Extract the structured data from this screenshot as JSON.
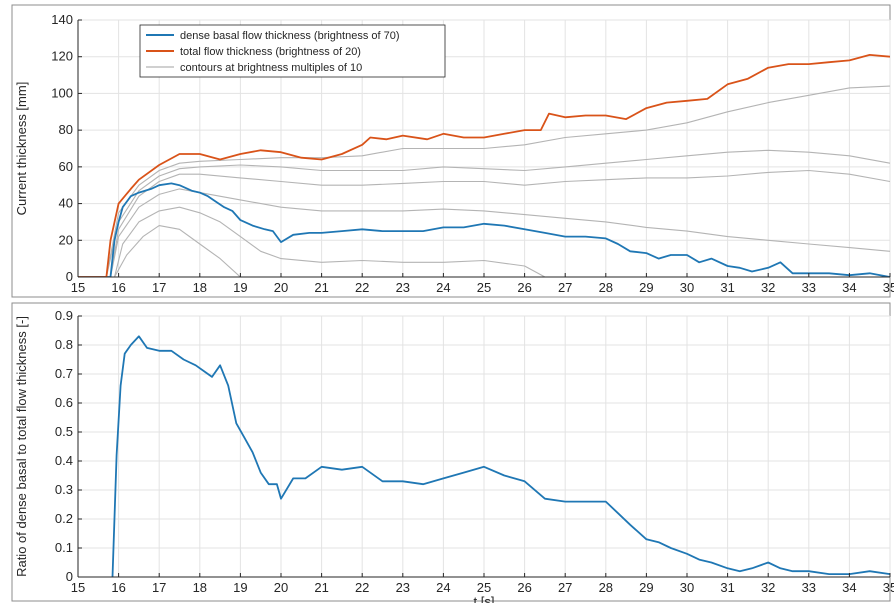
{
  "chart_data": [
    {
      "type": "line",
      "title": "",
      "xlabel": "",
      "ylabel": "Current thickness [mm]",
      "xlim": [
        15,
        35
      ],
      "ylim": [
        0,
        140
      ],
      "x_ticks": [
        15,
        16,
        17,
        18,
        19,
        20,
        21,
        22,
        23,
        24,
        25,
        26,
        27,
        28,
        29,
        30,
        31,
        32,
        33,
        34,
        35
      ],
      "y_ticks": [
        0,
        20,
        40,
        60,
        80,
        100,
        120,
        140
      ],
      "grid": true,
      "legend_position": "top-left",
      "legend": [
        {
          "label": "dense basal flow thickness (brightness of 70)",
          "color": "#1f77b4"
        },
        {
          "label": "total flow thickness (brightness of 20)",
          "color": "#d95319"
        },
        {
          "label": "contours at brightness multiples of 10",
          "color": "#b4b4b4"
        }
      ],
      "series": [
        {
          "name": "dense basal flow thickness (brightness of 70)",
          "color": "#1f77b4",
          "x": [
            15.0,
            15.8,
            15.9,
            16.0,
            16.1,
            16.3,
            16.5,
            16.8,
            17.0,
            17.3,
            17.5,
            17.8,
            18.0,
            18.2,
            18.4,
            18.6,
            18.8,
            19.0,
            19.3,
            19.6,
            19.8,
            20.0,
            20.3,
            20.7,
            21.0,
            21.5,
            22.0,
            22.5,
            23.0,
            23.5,
            24.0,
            24.5,
            25.0,
            25.5,
            26.0,
            26.5,
            27.0,
            27.5,
            28.0,
            28.3,
            28.6,
            29.0,
            29.3,
            29.6,
            30.0,
            30.3,
            30.6,
            31.0,
            31.3,
            31.6,
            32.0,
            32.3,
            32.6,
            33.0,
            33.5,
            34.0,
            34.5,
            35.0
          ],
          "values": [
            0,
            0,
            20,
            30,
            38,
            44,
            46,
            48,
            50,
            51,
            50,
            47,
            46,
            44,
            41,
            38,
            36,
            31,
            28,
            26,
            25,
            19,
            23,
            24,
            24,
            25,
            26,
            25,
            25,
            25,
            27,
            27,
            29,
            28,
            26,
            24,
            22,
            22,
            21,
            18,
            14,
            13,
            10,
            12,
            12,
            8,
            10,
            6,
            5,
            3,
            5,
            8,
            2,
            2,
            2,
            1,
            2,
            0
          ]
        },
        {
          "name": "total flow thickness (brightness of 20)",
          "color": "#d95319",
          "x": [
            15.0,
            15.7,
            15.8,
            16.0,
            16.3,
            16.5,
            17.0,
            17.5,
            18.0,
            18.5,
            19.0,
            19.5,
            20.0,
            20.5,
            21.0,
            21.5,
            22.0,
            22.2,
            22.6,
            23.0,
            23.6,
            24.0,
            24.5,
            25.0,
            25.5,
            26.0,
            26.4,
            26.6,
            27.0,
            27.5,
            28.0,
            28.5,
            29.0,
            29.5,
            30.0,
            30.5,
            31.0,
            31.5,
            32.0,
            32.5,
            33.0,
            33.5,
            34.0,
            34.5,
            35.0
          ],
          "values": [
            0,
            0,
            20,
            40,
            48,
            53,
            61,
            67,
            67,
            64,
            67,
            69,
            68,
            65,
            64,
            67,
            72,
            76,
            75,
            77,
            75,
            78,
            76,
            76,
            78,
            80,
            80,
            89,
            87,
            88,
            88,
            86,
            92,
            95,
            96,
            97,
            105,
            108,
            114,
            116,
            116,
            117,
            118,
            121,
            120
          ]
        },
        {
          "name": "contours at brightness multiples of 10",
          "color": "#b4b4b4",
          "x": [
            15.0,
            15.7,
            16.0,
            16.5,
            17.0,
            17.5,
            18.0,
            19.0,
            20.0,
            21.0,
            22.0,
            23.0,
            24.0,
            25.0,
            26.0,
            27.0,
            28.0,
            29.0,
            30.0,
            31.0,
            32.0,
            33.0,
            34.0,
            35.0
          ],
          "values": [
            0,
            0,
            35,
            50,
            58,
            62,
            63,
            64,
            65,
            65,
            66,
            70,
            70,
            70,
            72,
            76,
            78,
            80,
            84,
            90,
            95,
            99,
            103,
            104
          ]
        },
        {
          "name": "contours at brightness multiples of 10",
          "color": "#b4b4b4",
          "x": [
            15.0,
            15.7,
            16.0,
            16.5,
            17.0,
            17.5,
            18.0,
            19.0,
            20.0,
            21.0,
            22.0,
            23.0,
            24.0,
            25.0,
            26.0,
            27.0,
            28.0,
            29.0,
            30.0,
            31.0,
            32.0,
            33.0,
            34.0,
            35.0
          ],
          "values": [
            0,
            0,
            30,
            47,
            55,
            59,
            60,
            61,
            60,
            58,
            58,
            58,
            60,
            59,
            58,
            60,
            62,
            64,
            66,
            68,
            69,
            68,
            66,
            62
          ]
        },
        {
          "name": "contours at brightness multiples of 10",
          "color": "#b4b4b4",
          "x": [
            15.0,
            15.8,
            16.0,
            16.5,
            17.0,
            17.5,
            18.0,
            19.0,
            20.0,
            21.0,
            22.0,
            23.0,
            24.0,
            25.0,
            26.0,
            27.0,
            28.0,
            29.0,
            30.0,
            31.0,
            32.0,
            33.0,
            34.0,
            35.0
          ],
          "values": [
            0,
            0,
            26,
            44,
            52,
            56,
            56,
            54,
            52,
            50,
            50,
            51,
            52,
            52,
            50,
            52,
            53,
            54,
            54,
            55,
            57,
            58,
            56,
            52
          ]
        },
        {
          "name": "contours at brightness multiples of 10",
          "color": "#b4b4b4",
          "x": [
            15.0,
            15.8,
            16.0,
            16.5,
            17.0,
            17.5,
            18.0,
            19.0,
            20.0,
            21.0,
            22.0,
            23.0,
            24.0,
            25.0,
            26.0,
            27.0,
            28.0,
            29.0,
            30.0,
            31.0,
            32.0,
            33.0,
            34.0,
            35.0
          ],
          "values": [
            0,
            0,
            22,
            38,
            45,
            48,
            46,
            42,
            38,
            36,
            36,
            36,
            37,
            36,
            34,
            32,
            30,
            27,
            25,
            22,
            20,
            18,
            16,
            14
          ]
        },
        {
          "name": "contours at brightness multiples of 10",
          "color": "#b4b4b4",
          "x": [
            15.0,
            15.9,
            16.1,
            16.5,
            17.0,
            17.5,
            18.0,
            18.5,
            19.0,
            19.5,
            20.0,
            21.0,
            22.0,
            23.0,
            24.0,
            25.0,
            26.0,
            26.5
          ],
          "values": [
            0,
            0,
            18,
            30,
            36,
            38,
            35,
            30,
            22,
            14,
            10,
            8,
            9,
            8,
            8,
            9,
            6,
            0
          ]
        },
        {
          "name": "contours at brightness multiples of 10",
          "color": "#b4b4b4",
          "x": [
            15.0,
            15.9,
            16.2,
            16.6,
            17.0,
            17.5,
            18.0,
            18.5,
            19.0
          ],
          "values": [
            0,
            0,
            12,
            22,
            28,
            26,
            18,
            10,
            0
          ]
        }
      ]
    },
    {
      "type": "line",
      "title": "",
      "xlabel": "t [s]",
      "ylabel": "Ratio of dense basal to total flow thickness [-]",
      "xlim": [
        15,
        35
      ],
      "ylim": [
        0,
        0.9
      ],
      "x_ticks": [
        15,
        16,
        17,
        18,
        19,
        20,
        21,
        22,
        23,
        24,
        25,
        26,
        27,
        28,
        29,
        30,
        31,
        32,
        33,
        34,
        35
      ],
      "y_ticks": [
        0,
        0.1,
        0.2,
        0.3,
        0.4,
        0.5,
        0.6,
        0.7,
        0.8,
        0.9
      ],
      "grid": true,
      "series": [
        {
          "color": "#1f77b4",
          "x": [
            15.85,
            15.95,
            16.05,
            16.15,
            16.3,
            16.5,
            16.7,
            17.0,
            17.3,
            17.6,
            17.9,
            18.1,
            18.3,
            18.5,
            18.7,
            18.9,
            19.1,
            19.3,
            19.5,
            19.7,
            19.9,
            20.0,
            20.3,
            20.6,
            21.0,
            21.5,
            22.0,
            22.5,
            23.0,
            23.5,
            24.0,
            24.5,
            25.0,
            25.5,
            26.0,
            26.5,
            27.0,
            27.5,
            28.0,
            28.3,
            28.6,
            29.0,
            29.3,
            29.6,
            30.0,
            30.3,
            30.6,
            31.0,
            31.3,
            31.6,
            32.0,
            32.3,
            32.6,
            33.0,
            33.5,
            34.0,
            34.5,
            35.0
          ],
          "values": [
            0,
            0.42,
            0.66,
            0.77,
            0.8,
            0.83,
            0.79,
            0.78,
            0.78,
            0.75,
            0.73,
            0.71,
            0.69,
            0.73,
            0.66,
            0.53,
            0.48,
            0.43,
            0.36,
            0.32,
            0.32,
            0.27,
            0.34,
            0.34,
            0.38,
            0.37,
            0.38,
            0.33,
            0.33,
            0.32,
            0.34,
            0.36,
            0.38,
            0.35,
            0.33,
            0.27,
            0.26,
            0.26,
            0.26,
            0.22,
            0.18,
            0.13,
            0.12,
            0.1,
            0.08,
            0.06,
            0.05,
            0.03,
            0.02,
            0.03,
            0.05,
            0.03,
            0.02,
            0.02,
            0.01,
            0.01,
            0.02,
            0.01
          ]
        }
      ]
    }
  ]
}
